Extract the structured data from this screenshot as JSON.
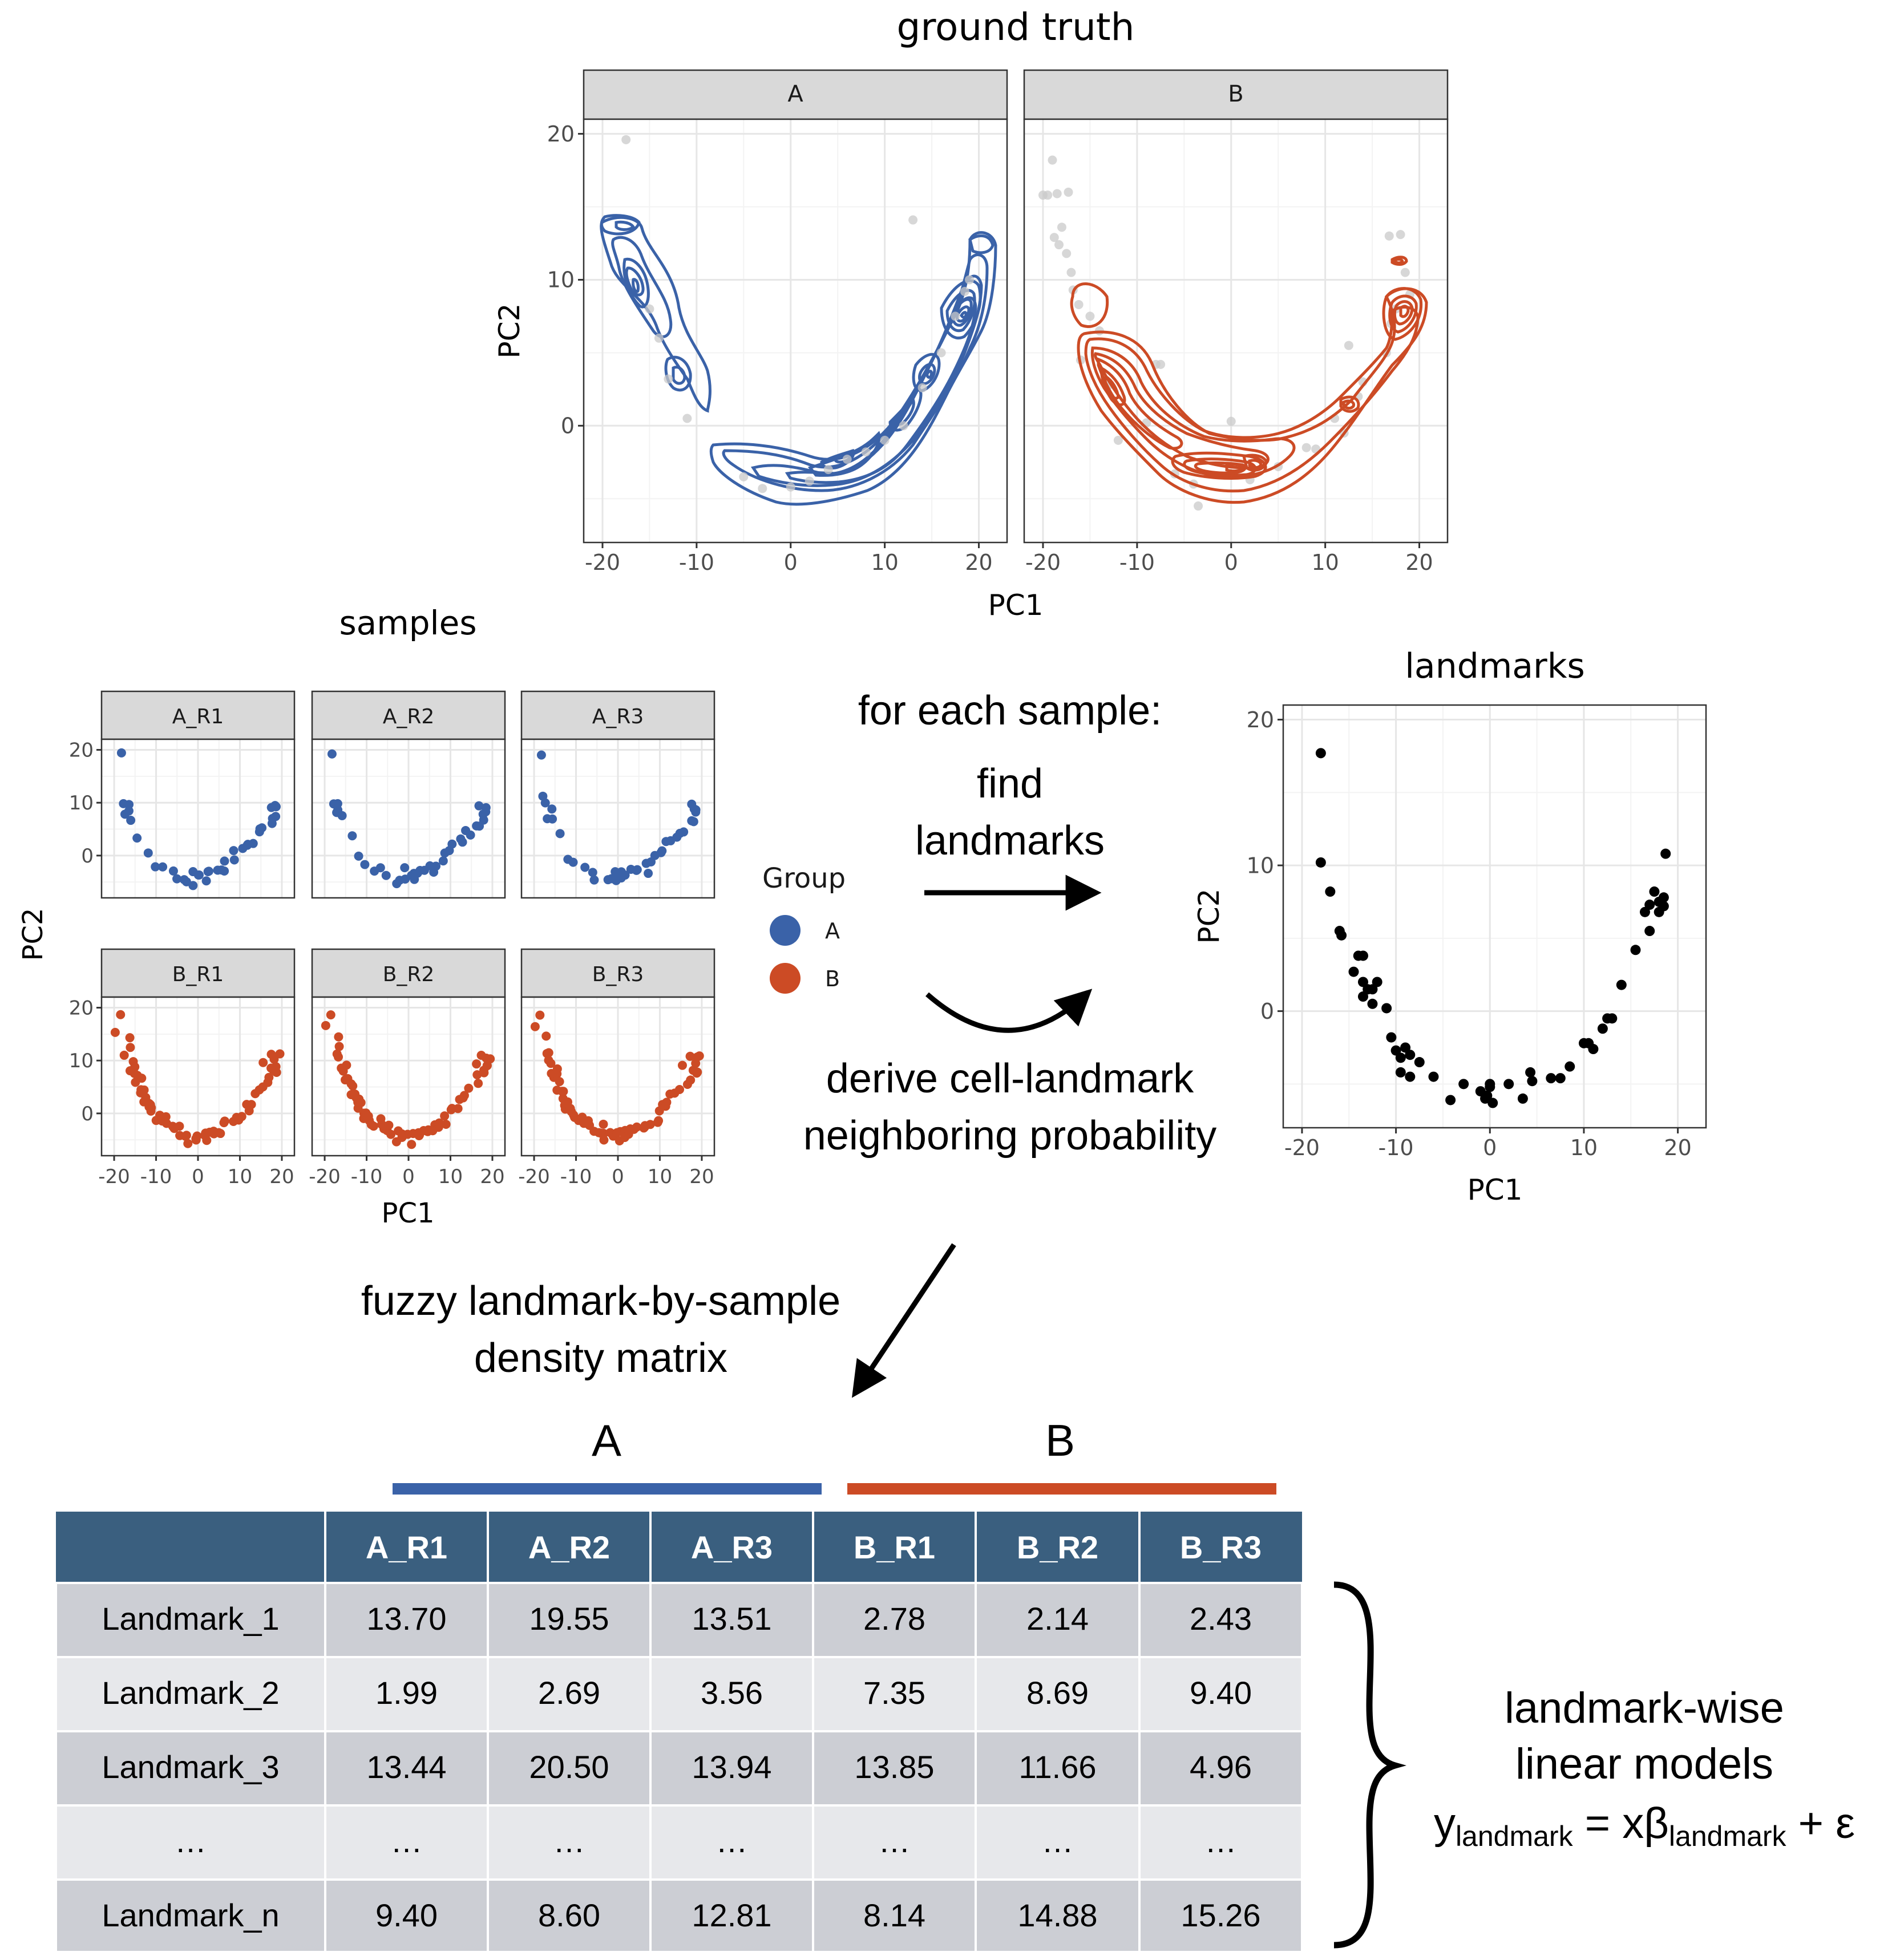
{
  "colors": {
    "group_a": "#3a62a8",
    "group_b": "#cc4b25",
    "table_header": "#3a5f7f",
    "row_dark": "#ccced4",
    "row_light": "#e7e8eb",
    "gray_point": "#c9c9c9",
    "landmark_point": "#000000"
  },
  "ground_truth": {
    "title": "ground truth",
    "panels": [
      "A",
      "B"
    ],
    "xlabel": "PC1",
    "ylabel": "PC2",
    "x_ticks": [
      "-20",
      "-10",
      "0",
      "10",
      "20"
    ],
    "y_ticks": [
      "20",
      "10",
      "0"
    ]
  },
  "samples": {
    "title": "samples",
    "panels": [
      "A_R1",
      "A_R2",
      "A_R3",
      "B_R1",
      "B_R2",
      "B_R3"
    ],
    "xlabel": "PC1",
    "ylabel": "PC2",
    "x_ticks": [
      "-20",
      "-10",
      "0",
      "10",
      "20"
    ],
    "y_ticks": [
      "20",
      "10",
      "0"
    ]
  },
  "legend": {
    "title": "Group",
    "items": [
      "A",
      "B"
    ]
  },
  "landmarks_plot": {
    "title": "landmarks",
    "xlabel": "PC1",
    "ylabel": "PC2",
    "x_ticks": [
      "-20",
      "-10",
      "0",
      "10",
      "20"
    ],
    "y_ticks": [
      "20",
      "10",
      "0"
    ]
  },
  "steps": {
    "header": "for each sample:",
    "find_line1": "find",
    "find_line2": "landmarks",
    "derive_line1": "derive cell-landmark",
    "derive_line2": "neighboring probability",
    "fuzzy_line1": "fuzzy landmark-by-sample",
    "fuzzy_line2": "density matrix"
  },
  "groups": {
    "a": "A",
    "b": "B"
  },
  "table": {
    "headers": [
      "",
      "A_R1",
      "A_R2",
      "A_R3",
      "B_R1",
      "B_R2",
      "B_R3"
    ],
    "rows": [
      [
        "Landmark_1",
        "13.70",
        "19.55",
        "13.51",
        "2.78",
        "2.14",
        "2.43"
      ],
      [
        "Landmark_2",
        "1.99",
        "2.69",
        "3.56",
        "7.35",
        "8.69",
        "9.40"
      ],
      [
        "Landmark_3",
        "13.44",
        "20.50",
        "13.94",
        "13.85",
        "11.66",
        "4.96"
      ],
      [
        "…",
        "…",
        "…",
        "…",
        "…",
        "…",
        "…"
      ],
      [
        "Landmark_n",
        "9.40",
        "8.60",
        "12.81",
        "8.14",
        "14.88",
        "15.26"
      ]
    ]
  },
  "model": {
    "line1": "landmark-wise",
    "line2": "linear models",
    "y": "y",
    "y_sub": "landmark",
    "eq": " = xβ",
    "beta_sub": "landmark",
    "tail": " + ε"
  },
  "chart_data": [
    {
      "type": "scatter",
      "title": "landmarks",
      "xlabel": "PC1",
      "ylabel": "PC2",
      "xlim": [
        -22,
        23
      ],
      "ylim": [
        -8,
        21
      ],
      "points": [
        [
          -18,
          17.7
        ],
        [
          -18,
          10.2
        ],
        [
          -17,
          8.2
        ],
        [
          -16,
          5.5
        ],
        [
          -15.8,
          5.2
        ],
        [
          -14.5,
          2.7
        ],
        [
          -14,
          3.8
        ],
        [
          -13.5,
          3.8
        ],
        [
          -13.5,
          2
        ],
        [
          -13,
          1.5
        ],
        [
          -12.5,
          1.5
        ],
        [
          -12,
          2
        ],
        [
          -12.5,
          0.5
        ],
        [
          -13.5,
          1
        ],
        [
          -11,
          0.2
        ],
        [
          -10.5,
          -1.8
        ],
        [
          -10,
          -2.7
        ],
        [
          -9.5,
          -3.2
        ],
        [
          -9,
          -2.5
        ],
        [
          -8.5,
          -3
        ],
        [
          -7.5,
          -3.5
        ],
        [
          -9.5,
          -4.2
        ],
        [
          -8.5,
          -4.5
        ],
        [
          -6,
          -4.5
        ],
        [
          -4.2,
          -6.1
        ],
        [
          -2.8,
          -5
        ],
        [
          -1,
          -5.5
        ],
        [
          -0.5,
          -6
        ],
        [
          0,
          -5.2
        ],
        [
          0,
          -5
        ],
        [
          0.3,
          -6.3
        ],
        [
          -0.3,
          -5.8
        ],
        [
          2,
          -5
        ],
        [
          3.5,
          -6
        ],
        [
          4.3,
          -4.2
        ],
        [
          4.5,
          -4.8
        ],
        [
          6.5,
          -4.6
        ],
        [
          7.5,
          -4.6
        ],
        [
          8.5,
          -3.8
        ],
        [
          10,
          -2.2
        ],
        [
          10.5,
          -2.2
        ],
        [
          11,
          -2.6
        ],
        [
          12,
          -1.2
        ],
        [
          12.5,
          -0.5
        ],
        [
          13,
          -0.5
        ],
        [
          14,
          1.8
        ],
        [
          15.5,
          4.2
        ],
        [
          16.5,
          6.8
        ],
        [
          17,
          5.5
        ],
        [
          17,
          7.3
        ],
        [
          17.5,
          8.2
        ],
        [
          18,
          7.5
        ],
        [
          18.5,
          7.2
        ],
        [
          18.5,
          7.8
        ],
        [
          18.7,
          10.8
        ],
        [
          18,
          6.8
        ]
      ]
    },
    {
      "type": "table",
      "title": "fuzzy landmark-by-sample density matrix",
      "columns": [
        "A_R1",
        "A_R2",
        "A_R3",
        "B_R1",
        "B_R2",
        "B_R3"
      ],
      "rows": [
        "Landmark_1",
        "Landmark_2",
        "Landmark_3",
        "…",
        "Landmark_n"
      ]
    }
  ]
}
